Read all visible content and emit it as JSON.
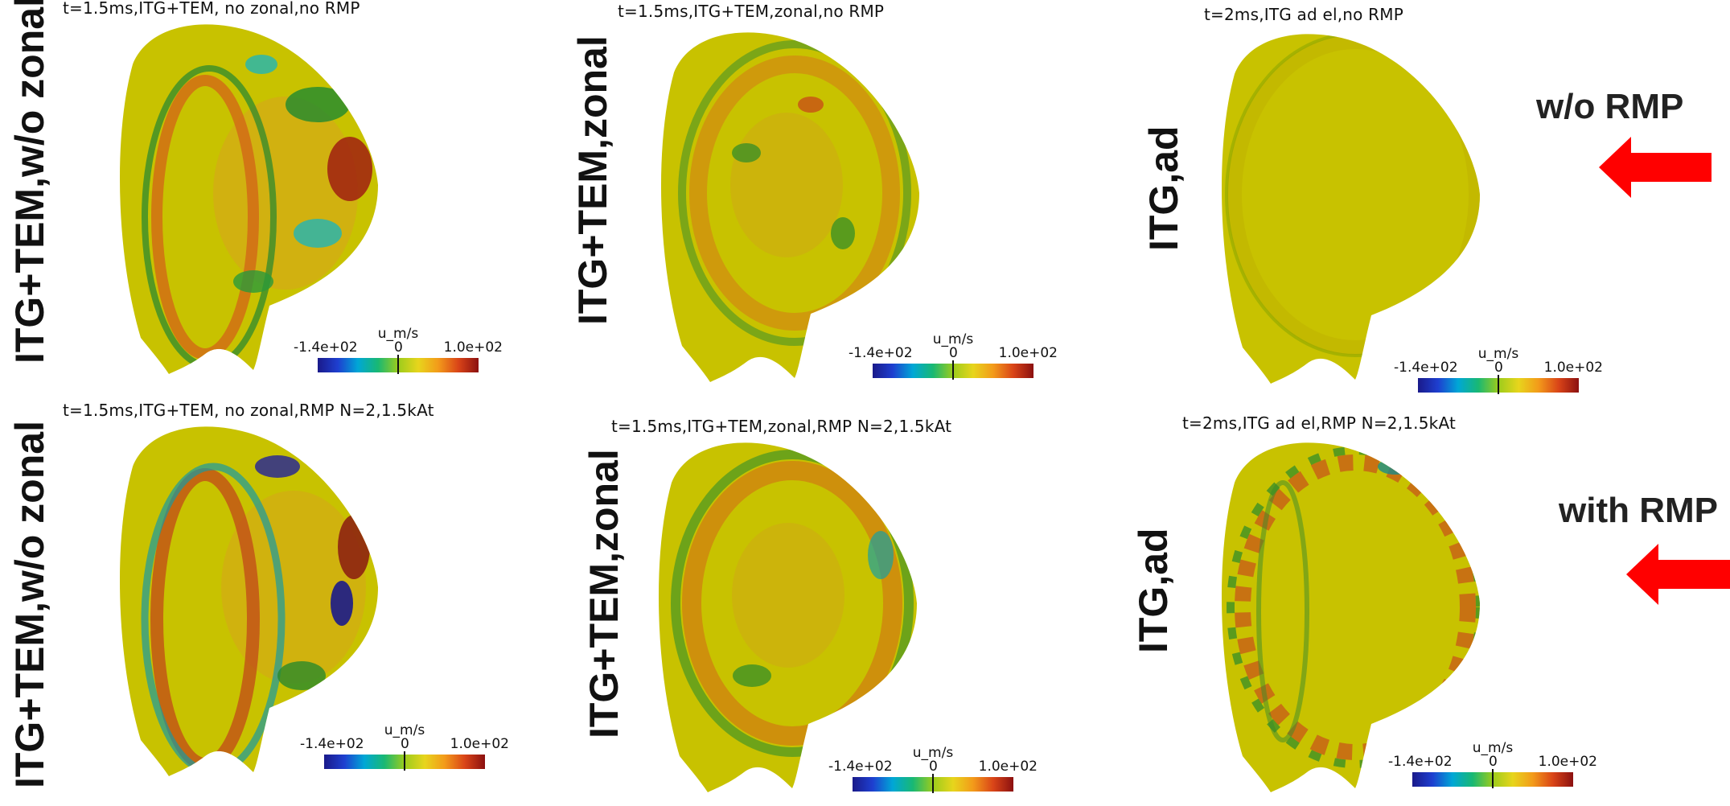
{
  "rows": [
    {
      "rmp_label": "w/o RMP",
      "panels": [
        {
          "title": "t=1.5ms,ITG+TEM, no zonal,no RMP",
          "side_label": "ITG+TEM,w/o zonal"
        },
        {
          "title": "t=1.5ms,ITG+TEM,zonal,no RMP",
          "side_label": "ITG+TEM,zonal"
        },
        {
          "title": "t=2ms,ITG ad el,no RMP",
          "side_label": "ITG,ad"
        }
      ]
    },
    {
      "rmp_label": "with RMP",
      "panels": [
        {
          "title": "t=1.5ms,ITG+TEM, no zonal,RMP N=2,1.5kAt",
          "side_label": "ITG+TEM,w/o zonal"
        },
        {
          "title": "t=1.5ms,ITG+TEM,zonal,RMP N=2,1.5kAt",
          "side_label": "ITG+TEM,zonal"
        },
        {
          "title": "t=2ms,ITG ad el,RMP N=2,1.5kAt",
          "side_label": "ITG,ad"
        }
      ]
    }
  ],
  "colorbar": {
    "unit": "u_m/s",
    "min": "-1.4e+02",
    "mid": "0",
    "max": "1.0e+02"
  },
  "colors": {
    "background": "#c8c200",
    "arrow": "#ff0000"
  }
}
